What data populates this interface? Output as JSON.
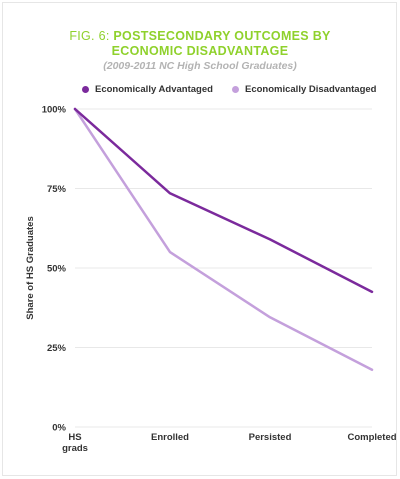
{
  "header": {
    "fig_label": "FIG. 6:",
    "title_line_1": "POSTSECONDARY OUTCOMES BY",
    "title_line_2": "ECONOMIC DISADVANTAGE",
    "subtitle": "(2009-2011 NC High School Graduates)"
  },
  "colors": {
    "title_accent": "#8fd12c",
    "subtitle": "#b3b3b3",
    "advantaged": "#7b2a9c",
    "disadvantaged": "#c4a0dc",
    "grid": "#e8e8e8"
  },
  "chart_data": {
    "type": "line",
    "title": "POSTSECONDARY OUTCOMES BY ECONOMIC DISADVANTAGE",
    "subtitle": "(2009-2011 NC High School Graduates)",
    "categories": [
      "HS grads",
      "Enrolled",
      "Persisted",
      "Completed"
    ],
    "category_labels": [
      [
        "HS",
        "grads"
      ],
      [
        "Enrolled"
      ],
      [
        "Persisted"
      ],
      [
        "Completed"
      ]
    ],
    "series": [
      {
        "name": "Economically Advantaged",
        "color": "#7b2a9c",
        "values": [
          100,
          73.5,
          59,
          42.5
        ]
      },
      {
        "name": "Economically Disadvantaged",
        "color": "#c4a0dc",
        "values": [
          100,
          55,
          34.5,
          18
        ]
      }
    ],
    "ylabel": "Share of HS Graduates",
    "xlabel": "",
    "ylim": [
      0,
      100
    ],
    "yticks": [
      0,
      25,
      50,
      75,
      100
    ],
    "ytick_labels": [
      "0%",
      "25%",
      "50%",
      "75%",
      "100%"
    ],
    "grid": true,
    "legend_position": "top"
  }
}
